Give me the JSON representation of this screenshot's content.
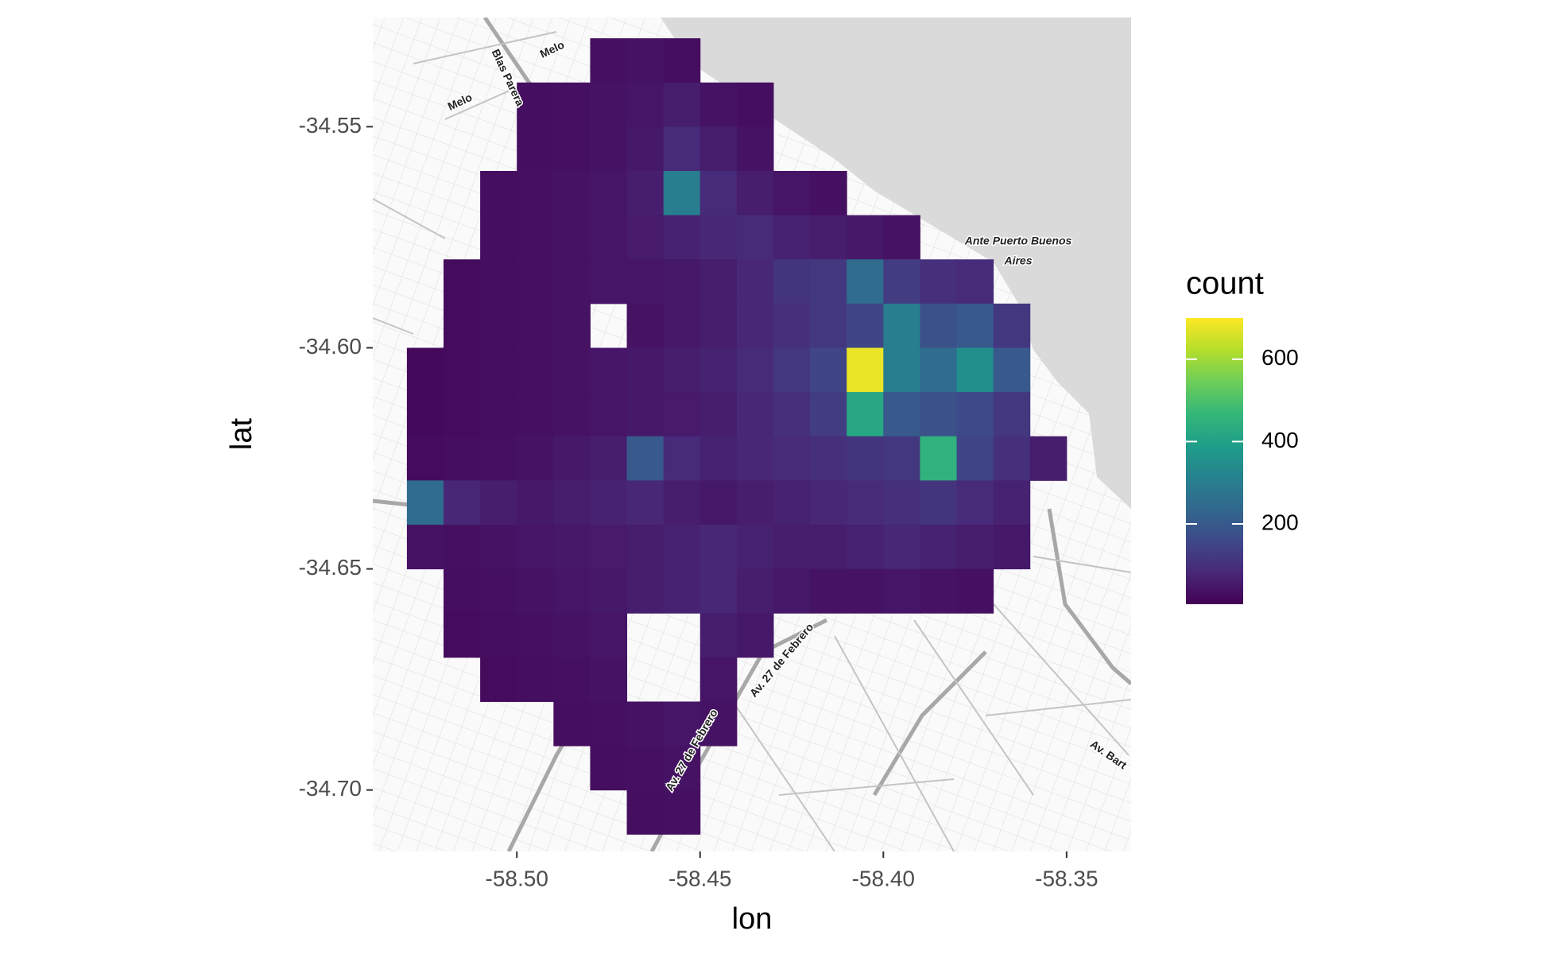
{
  "chart_data": {
    "type": "bin2d",
    "x_label": "lon",
    "y_label": "lat",
    "legend_title": "count",
    "colormap": "viridis",
    "xlim": [
      -58.5393,
      -58.3324
    ],
    "ylim": [
      -34.7139,
      -34.5253
    ],
    "xticks": [
      {
        "value": -58.5,
        "label": "-58.50"
      },
      {
        "value": -58.45,
        "label": "-58.45"
      },
      {
        "value": -58.4,
        "label": "-58.40"
      },
      {
        "value": -58.35,
        "label": "-58.35"
      }
    ],
    "yticks": [
      {
        "value": -34.55,
        "label": "-34.55"
      },
      {
        "value": -34.6,
        "label": "-34.60"
      },
      {
        "value": -34.65,
        "label": "-34.65"
      },
      {
        "value": -34.7,
        "label": "-34.70"
      }
    ],
    "lon_bins": [
      -58.53,
      -58.52,
      -58.51,
      -58.5,
      -58.49,
      -58.48,
      -58.47,
      -58.46,
      -58.45,
      -58.44,
      -58.43,
      -58.42,
      -58.41,
      -58.4,
      -58.39,
      -58.38,
      -58.37,
      -58.36,
      -58.35
    ],
    "lat_bins": [
      -34.53,
      -34.54,
      -34.55,
      -34.56,
      -34.57,
      -34.58,
      -34.59,
      -34.6,
      -34.61,
      -34.62,
      -34.63,
      -34.64,
      -34.65,
      -34.66,
      -34.67,
      -34.68,
      -34.69,
      -34.7,
      -34.71
    ],
    "counts": [
      [
        null,
        null,
        null,
        null,
        null,
        35,
        40,
        30,
        null,
        null,
        null,
        null,
        null,
        null,
        null,
        null,
        null,
        null
      ],
      [
        null,
        null,
        null,
        30,
        35,
        40,
        45,
        60,
        40,
        30,
        null,
        null,
        null,
        null,
        null,
        null,
        null,
        null
      ],
      [
        null,
        null,
        null,
        30,
        35,
        40,
        50,
        90,
        60,
        40,
        null,
        null,
        null,
        null,
        null,
        null,
        null,
        null
      ],
      [
        null,
        null,
        30,
        35,
        40,
        45,
        60,
        300,
        90,
        60,
        45,
        35,
        null,
        null,
        null,
        null,
        null,
        null
      ],
      [
        null,
        null,
        30,
        35,
        40,
        45,
        55,
        70,
        80,
        90,
        70,
        60,
        50,
        40,
        null,
        null,
        null,
        null
      ],
      [
        null,
        25,
        30,
        35,
        40,
        45,
        45,
        50,
        60,
        80,
        110,
        120,
        250,
        130,
        100,
        90,
        null,
        null
      ],
      [
        null,
        25,
        30,
        35,
        40,
        null,
        40,
        50,
        60,
        80,
        100,
        120,
        150,
        300,
        180,
        200,
        120,
        null
      ],
      [
        20,
        25,
        30,
        35,
        40,
        45,
        50,
        60,
        70,
        90,
        120,
        150,
        680,
        300,
        250,
        350,
        200,
        null
      ],
      [
        20,
        25,
        30,
        35,
        40,
        45,
        50,
        55,
        60,
        80,
        100,
        130,
        420,
        200,
        180,
        160,
        120,
        null
      ],
      [
        25,
        30,
        35,
        40,
        50,
        60,
        200,
        90,
        70,
        80,
        90,
        100,
        110,
        120,
        450,
        150,
        100,
        60
      ],
      [
        250,
        80,
        60,
        50,
        60,
        70,
        80,
        60,
        50,
        60,
        70,
        80,
        90,
        100,
        110,
        90,
        70,
        null
      ],
      [
        40,
        35,
        40,
        45,
        50,
        55,
        60,
        70,
        80,
        70,
        60,
        60,
        70,
        80,
        70,
        60,
        50,
        null
      ],
      [
        null,
        30,
        35,
        40,
        45,
        50,
        60,
        70,
        80,
        60,
        50,
        40,
        40,
        45,
        40,
        35,
        null,
        null
      ],
      [
        null,
        25,
        30,
        35,
        40,
        45,
        null,
        null,
        60,
        50,
        null,
        null,
        null,
        null,
        null,
        null,
        null,
        null
      ],
      [
        null,
        null,
        25,
        30,
        35,
        40,
        null,
        null,
        45,
        null,
        null,
        null,
        null,
        null,
        null,
        null,
        null,
        null
      ],
      [
        null,
        null,
        null,
        null,
        30,
        35,
        40,
        45,
        40,
        null,
        null,
        null,
        null,
        null,
        null,
        null,
        null,
        null
      ],
      [
        null,
        null,
        null,
        null,
        null,
        30,
        35,
        40,
        null,
        null,
        null,
        null,
        null,
        null,
        null,
        null,
        null,
        null
      ],
      [
        null,
        null,
        null,
        null,
        null,
        null,
        30,
        35,
        null,
        null,
        null,
        null,
        null,
        null,
        null,
        null,
        null,
        null
      ]
    ],
    "color_lim": [
      5,
      700
    ],
    "color_ticks": [
      200,
      400,
      600
    ],
    "map_labels": [
      "Melo",
      "Melo",
      "Blas Parera",
      "Ante Puerto Buenos",
      "Aires",
      "Av. 27 de Febrero",
      "Av. 27 de Febrero",
      "Av. Bart"
    ]
  }
}
